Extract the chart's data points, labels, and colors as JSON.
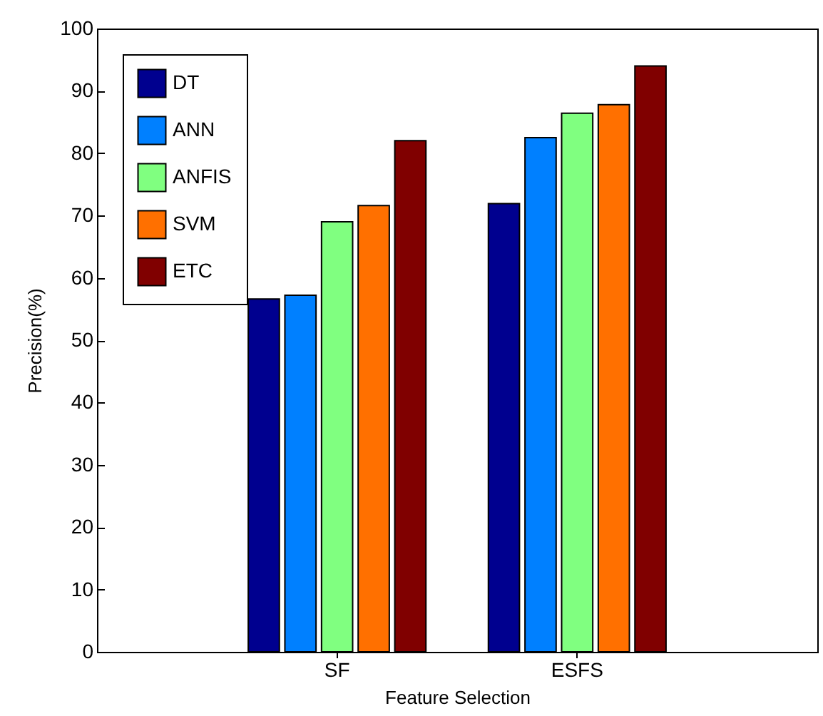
{
  "chart_data": {
    "type": "bar",
    "xlabel": "Feature Selection",
    "ylabel": "Precision(%)",
    "categories": [
      "SF",
      "ESFS"
    ],
    "series": [
      {
        "name": "DT",
        "color": "#00008f",
        "values": [
          56.6,
          71.9
        ]
      },
      {
        "name": "ANN",
        "color": "#0080ff",
        "values": [
          57.2,
          82.5
        ]
      },
      {
        "name": "ANFIS",
        "color": "#80ff80",
        "values": [
          69.0,
          86.4
        ]
      },
      {
        "name": "SVM",
        "color": "#ff7000",
        "values": [
          71.6,
          87.8
        ]
      },
      {
        "name": "ETC",
        "color": "#800000",
        "values": [
          82.0,
          94.0
        ]
      }
    ],
    "ylim": [
      0,
      100
    ],
    "yticks": [
      0,
      10,
      20,
      30,
      40,
      50,
      60,
      70,
      80,
      90,
      100
    ],
    "grid": false,
    "legend": "top left"
  }
}
